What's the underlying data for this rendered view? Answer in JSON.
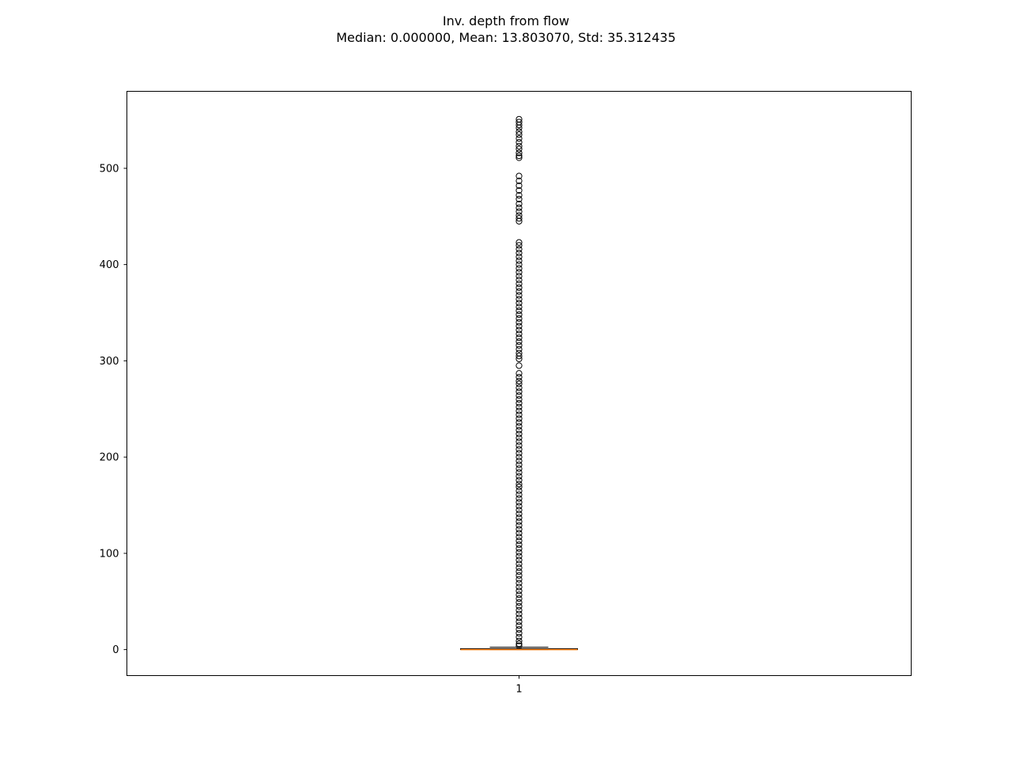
{
  "chart_data": {
    "type": "box",
    "title": "Inv. depth from flow",
    "subtitle": "Median: 0.000000, Mean: 13.803070, Std: 35.312435",
    "xlabel": "",
    "ylabel": "",
    "categories": [
      "1"
    ],
    "ylim": [
      -27,
      580
    ],
    "yticks": [
      0,
      100,
      200,
      300,
      400,
      500
    ],
    "grid": false,
    "colors": {
      "median": "#ff7f0e",
      "box": "#000000",
      "flier": "#000000"
    },
    "box": {
      "q1": 0.0,
      "median": 0.0,
      "q3": 1.0,
      "whisker_low": 0.0,
      "whisker_high": 2.5
    },
    "fliers": [
      551,
      548,
      545,
      542,
      538,
      535,
      531,
      527,
      523,
      520,
      516,
      513,
      511,
      492,
      487,
      482,
      477,
      472,
      468,
      463,
      459,
      455,
      451,
      448,
      445,
      423,
      420,
      416,
      412,
      408,
      404,
      400,
      396,
      392,
      388,
      384,
      380,
      376,
      372,
      368,
      364,
      360,
      356,
      352,
      348,
      344,
      340,
      336,
      332,
      328,
      324,
      320,
      316,
      312,
      308,
      305,
      302,
      295,
      287,
      283,
      279,
      276,
      272,
      268,
      264,
      260,
      256,
      252,
      248,
      244,
      240,
      236,
      232,
      228,
      224,
      220,
      216,
      212,
      208,
      204,
      200,
      196,
      192,
      188,
      184,
      180,
      176,
      172,
      169,
      165,
      161,
      157,
      153,
      149,
      145,
      141,
      137,
      133,
      129,
      125,
      121,
      117,
      113,
      109,
      105,
      101,
      97,
      93,
      89,
      85,
      81,
      77,
      73,
      69,
      65,
      61,
      57,
      53,
      49,
      45,
      41,
      37,
      33,
      29,
      25,
      21,
      17,
      13,
      9,
      6,
      4
    ]
  }
}
